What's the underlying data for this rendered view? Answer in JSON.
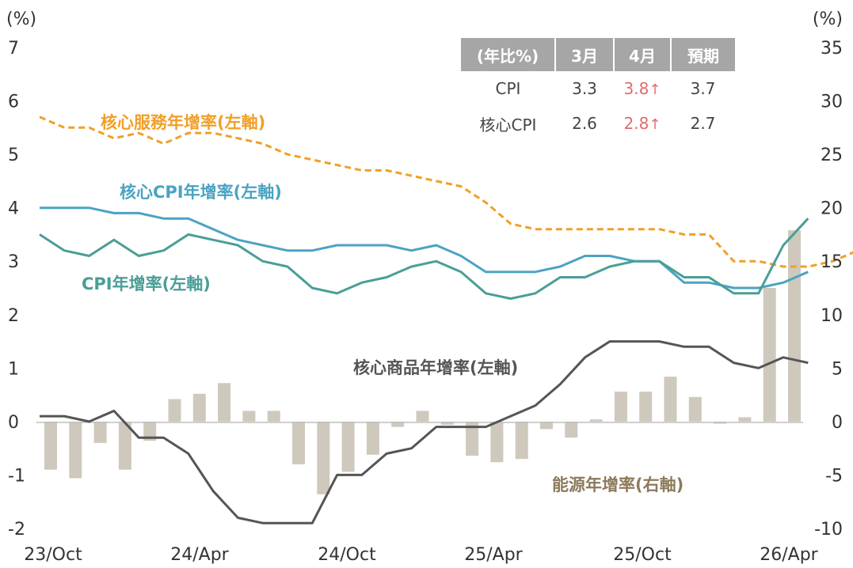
{
  "chart_data": {
    "type": "bar+line",
    "x_tick_labels": [
      "23/Oct",
      "24/Apr",
      "24/Oct",
      "25/Apr",
      "25/Oct",
      "26/Apr"
    ],
    "left_axis": {
      "unit": "(%)",
      "ylim": [
        -2,
        7
      ],
      "ticks": [
        "-2",
        "-1",
        "0",
        "1",
        "2",
        "3",
        "4",
        "5",
        "6",
        "7"
      ]
    },
    "right_axis": {
      "unit": "(%)",
      "ylim": [
        -10,
        35
      ],
      "ticks": [
        "-10",
        "-5",
        "0",
        "5",
        "10",
        "15",
        "20",
        "25",
        "30",
        "35"
      ]
    },
    "series": [
      {
        "name": "核心服務年增率(左軸)",
        "kind": "line",
        "dashed": true,
        "axis": "left",
        "color": "#f0a028",
        "values": [
          5.7,
          5.5,
          5.5,
          5.3,
          5.4,
          5.2,
          5.4,
          5.4,
          5.3,
          5.2,
          5.0,
          4.9,
          4.8,
          4.7,
          4.7,
          4.6,
          4.5,
          4.4,
          4.1,
          3.7,
          3.6,
          3.6,
          3.6,
          3.6,
          3.6,
          3.6,
          3.5,
          3.5,
          3.0,
          3.0,
          2.9,
          2.9,
          3.0,
          3.2
        ]
      },
      {
        "name": "核心CPI年增率(左軸)",
        "kind": "line",
        "axis": "left",
        "color": "#4ba3c3",
        "values": [
          4.0,
          4.0,
          4.0,
          3.9,
          3.9,
          3.8,
          3.8,
          3.6,
          3.4,
          3.3,
          3.2,
          3.2,
          3.3,
          3.3,
          3.3,
          3.2,
          3.3,
          3.1,
          2.8,
          2.8,
          2.8,
          2.9,
          3.1,
          3.1,
          3.0,
          3.0,
          2.6,
          2.6,
          2.5,
          2.5,
          2.6,
          2.8
        ]
      },
      {
        "name": "CPI年增率(左軸)",
        "kind": "line",
        "axis": "left",
        "color": "#4a9e96",
        "values": [
          3.5,
          3.2,
          3.1,
          3.4,
          3.1,
          3.2,
          3.5,
          3.4,
          3.3,
          3.0,
          2.9,
          2.5,
          2.4,
          2.6,
          2.7,
          2.9,
          3.0,
          2.8,
          2.4,
          2.3,
          2.4,
          2.7,
          2.7,
          2.9,
          3.0,
          3.0,
          2.7,
          2.7,
          2.4,
          2.4,
          3.3,
          3.8
        ]
      },
      {
        "name": "核心商品年增率(左軸)",
        "kind": "line",
        "axis": "left",
        "color": "#555555",
        "values": [
          0.1,
          0.1,
          0.0,
          0.2,
          -0.3,
          -0.3,
          -0.6,
          -1.3,
          -1.8,
          -1.9,
          -1.9,
          -1.9,
          -1.0,
          -1.0,
          -0.6,
          -0.5,
          -0.1,
          -0.1,
          -0.1,
          0.1,
          0.3,
          0.7,
          1.2,
          1.5,
          1.5,
          1.5,
          1.4,
          1.4,
          1.1,
          1.0,
          1.2,
          1.1
        ]
      },
      {
        "name": "能源年增率(右軸)",
        "kind": "bar",
        "axis": "right",
        "color": "#cfc8bd",
        "values": [
          -4.5,
          -5.3,
          -2.0,
          -4.5,
          -1.8,
          2.1,
          2.6,
          3.6,
          1.0,
          1.0,
          -4.0,
          -6.8,
          -4.7,
          -3.1,
          -0.5,
          1.0,
          -0.3,
          -3.2,
          -3.8,
          -3.5,
          -0.7,
          -1.5,
          0.2,
          2.8,
          2.8,
          4.2,
          2.3,
          -0.2,
          0.4,
          12.5,
          17.9
        ]
      }
    ],
    "annotations": [
      {
        "text": "核心服務年增率(左軸)",
        "color": "#f0a028"
      },
      {
        "text": "核心CPI年增率(左軸)",
        "color": "#4ba3c3"
      },
      {
        "text": "CPI年增率(左軸)",
        "color": "#4a9e96"
      },
      {
        "text": "核心商品年增率(左軸)",
        "color": "#555555"
      },
      {
        "text": "能源年增率(右軸)",
        "color": "#8c7a5b"
      }
    ],
    "table": {
      "headers": [
        "(年比%)",
        "3月",
        "4月",
        "預期"
      ],
      "rows": [
        {
          "label": "CPI",
          "mar": "3.3",
          "apr": "3.8",
          "arrow": "↑",
          "exp": "3.7"
        },
        {
          "label": "核心CPI",
          "mar": "2.6",
          "apr": "2.8",
          "arrow": "↑",
          "exp": "2.7"
        }
      ]
    }
  }
}
